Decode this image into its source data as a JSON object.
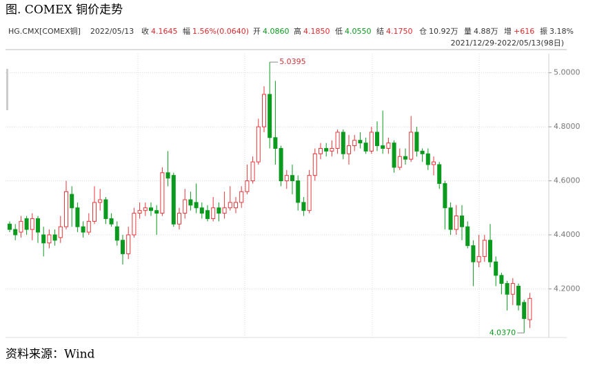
{
  "chart_data": {
    "type": "candlestick",
    "title": "图. COMEX 铜价走势",
    "source": "资料来源：Wind",
    "range_label": "2021/12/29-2022/05/13(98日)",
    "info": [
      {
        "label": "HG.CMX[COMEX铜]",
        "value": "2022/05/13",
        "color": "#333333"
      },
      {
        "label": "收",
        "value": "4.1645",
        "color": "#e0262b"
      },
      {
        "label": "幅",
        "value": "1.56%(0.0640)",
        "color": "#e0262b"
      },
      {
        "label": "开",
        "value": "4.0860",
        "color": "#0a9a1e"
      },
      {
        "label": "高",
        "value": "4.1850",
        "color": "#e0262b"
      },
      {
        "label": "低",
        "value": "4.0550",
        "color": "#0a9a1e"
      },
      {
        "label": "结",
        "value": "4.1750",
        "color": "#e0262b"
      },
      {
        "label": "仓",
        "value": "10.92万",
        "color": "#333333"
      },
      {
        "label": "量",
        "value": "4.88万",
        "color": "#333333"
      },
      {
        "label": "增",
        "value": "+616",
        "color": "#e0262b"
      },
      {
        "label": "振",
        "value": "3.18%",
        "color": "#333333"
      }
    ],
    "up_color": "#e8353a",
    "down_color": "#0a9a1e",
    "ylim": [
      4.02,
      5.045
    ],
    "yticks": [
      {
        "value": 4.2,
        "label": "4.2000"
      },
      {
        "value": 4.4,
        "label": "4.4000"
      },
      {
        "value": 4.6,
        "label": "4.6000"
      },
      {
        "value": 4.8,
        "label": "4.8000"
      },
      {
        "value": 5.0,
        "label": "5.0000"
      }
    ],
    "grid": true,
    "open": [
      4.44,
      4.42,
      4.41,
      4.46,
      4.42,
      4.46,
      4.4,
      4.37,
      4.4,
      4.39,
      4.43,
      4.55,
      4.5,
      4.43,
      4.41,
      4.45,
      4.52,
      4.53,
      4.46,
      4.43,
      4.38,
      4.33,
      4.4,
      4.48,
      4.49,
      4.5,
      4.49,
      4.48,
      4.63,
      4.62,
      4.44,
      4.48,
      4.53,
      4.52,
      4.5,
      4.49,
      4.46,
      4.5,
      4.48,
      4.5,
      4.5,
      4.52,
      4.56,
      4.6,
      4.67,
      4.8,
      4.92,
      4.76,
      4.72,
      4.6,
      4.62,
      4.6,
      4.52,
      4.49,
      4.62,
      4.7,
      4.72,
      4.71,
      4.72,
      4.78,
      4.7,
      4.73,
      4.75,
      4.74,
      4.71,
      4.78,
      4.73,
      4.72,
      4.74,
      4.65,
      4.69,
      4.68,
      4.78,
      4.71,
      4.7,
      4.66,
      4.66,
      4.59,
      4.5,
      4.42,
      4.47,
      4.43,
      4.36,
      4.3,
      4.32,
      4.38,
      4.3,
      4.25,
      4.22,
      4.18,
      4.21,
      4.15,
      4.086
    ],
    "close": [
      4.42,
      4.4,
      4.45,
      4.42,
      4.46,
      4.41,
      4.37,
      4.4,
      4.38,
      4.43,
      4.56,
      4.5,
      4.43,
      4.41,
      4.45,
      4.52,
      4.53,
      4.46,
      4.44,
      4.38,
      4.33,
      4.4,
      4.48,
      4.49,
      4.5,
      4.49,
      4.48,
      4.63,
      4.61,
      4.44,
      4.48,
      4.53,
      4.51,
      4.5,
      4.48,
      4.46,
      4.5,
      4.48,
      4.5,
      4.52,
      4.52,
      4.56,
      4.6,
      4.67,
      4.8,
      4.92,
      4.76,
      4.72,
      4.6,
      4.62,
      4.6,
      4.52,
      4.49,
      4.62,
      4.7,
      4.72,
      4.71,
      4.72,
      4.78,
      4.7,
      4.73,
      4.75,
      4.74,
      4.71,
      4.78,
      4.73,
      4.72,
      4.74,
      4.65,
      4.69,
      4.68,
      4.78,
      4.71,
      4.7,
      4.66,
      4.67,
      4.59,
      4.5,
      4.42,
      4.47,
      4.43,
      4.36,
      4.3,
      4.32,
      4.38,
      4.3,
      4.25,
      4.22,
      4.18,
      4.22,
      4.14,
      4.09,
      4.1645
    ],
    "high": [
      4.45,
      4.44,
      4.47,
      4.47,
      4.48,
      4.47,
      4.43,
      4.42,
      4.42,
      4.47,
      4.6,
      4.58,
      4.52,
      4.45,
      4.48,
      4.58,
      4.57,
      4.54,
      4.48,
      4.45,
      4.4,
      4.43,
      4.5,
      4.52,
      4.52,
      4.52,
      4.51,
      4.65,
      4.71,
      4.63,
      4.5,
      4.57,
      4.56,
      4.59,
      4.52,
      4.51,
      4.54,
      4.52,
      4.56,
      4.58,
      4.54,
      4.58,
      4.66,
      4.69,
      4.83,
      4.95,
      5.0395,
      4.97,
      4.73,
      4.64,
      4.66,
      4.62,
      4.54,
      4.64,
      4.72,
      4.74,
      4.74,
      4.75,
      4.79,
      4.79,
      4.77,
      4.77,
      4.78,
      4.76,
      4.8,
      4.82,
      4.86,
      4.76,
      4.75,
      4.72,
      4.72,
      4.84,
      4.8,
      4.72,
      4.72,
      4.69,
      4.67,
      4.6,
      4.52,
      4.51,
      4.51,
      4.45,
      4.38,
      4.4,
      4.4,
      4.44,
      4.32,
      4.26,
      4.23,
      4.24,
      4.22,
      4.16,
      4.185
    ],
    "low": [
      4.41,
      4.38,
      4.39,
      4.4,
      4.38,
      4.37,
      4.32,
      4.35,
      4.36,
      4.37,
      4.42,
      4.43,
      4.41,
      4.39,
      4.4,
      4.44,
      4.49,
      4.44,
      4.43,
      4.36,
      4.29,
      4.31,
      4.39,
      4.46,
      4.47,
      4.47,
      4.4,
      4.47,
      4.58,
      4.43,
      4.42,
      4.46,
      4.49,
      4.48,
      4.46,
      4.45,
      4.45,
      4.45,
      4.46,
      4.49,
      4.48,
      4.5,
      4.55,
      4.59,
      4.66,
      4.78,
      4.72,
      4.66,
      4.58,
      4.57,
      4.55,
      4.49,
      4.47,
      4.48,
      4.6,
      4.68,
      4.69,
      4.69,
      4.7,
      4.68,
      4.66,
      4.71,
      4.72,
      4.7,
      4.7,
      4.71,
      4.7,
      4.7,
      4.63,
      4.64,
      4.66,
      4.67,
      4.69,
      4.67,
      4.64,
      4.62,
      4.57,
      4.42,
      4.4,
      4.4,
      4.38,
      4.35,
      4.21,
      4.28,
      4.3,
      4.28,
      4.21,
      4.18,
      4.12,
      4.14,
      4.12,
      4.037,
      4.055
    ],
    "annotations": [
      {
        "value": 5.0395,
        "label": "5.0395",
        "at": "high",
        "color": "#d0343a"
      },
      {
        "value": 4.037,
        "label": "4.0370",
        "at": "low",
        "color": "#0a9a1e"
      }
    ]
  }
}
